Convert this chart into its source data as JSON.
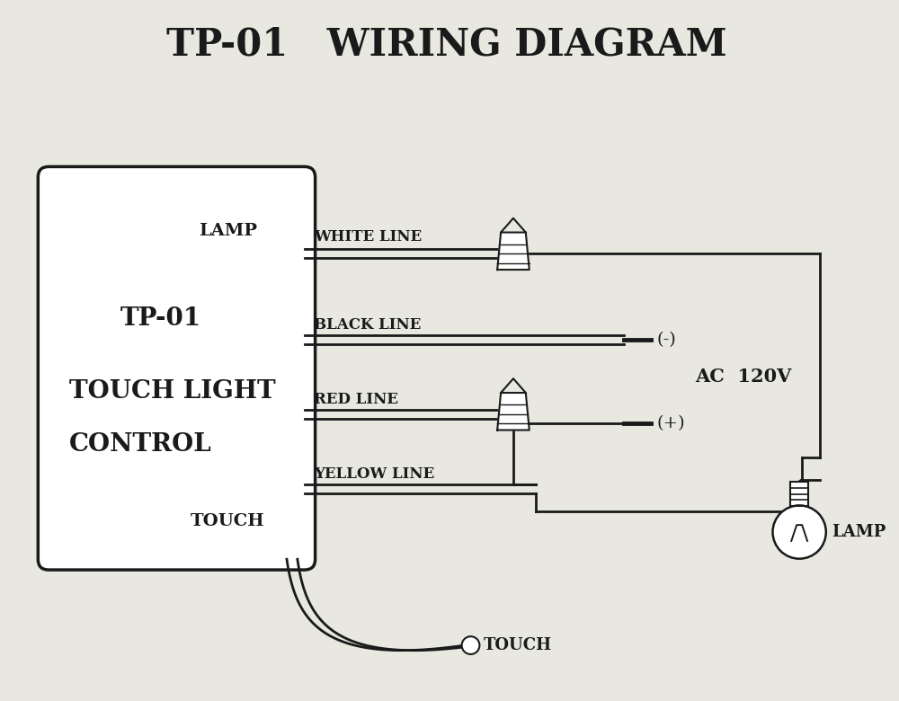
{
  "title": "TP-01   WIRING DIAGRAM",
  "bg_color": "#e8e8e0",
  "line_color": "#1a1a1a",
  "box_label_lamp": "LAMP",
  "box_label_touch": "TOUCH",
  "box_line1": "TP-01",
  "box_line2": "TOUCH LIGHT",
  "box_line3": "CONTROL",
  "wire_labels": [
    "WHITE LINE",
    "BLACK LINE",
    "RED LINE",
    "YELLOW LINE"
  ],
  "ac_label": "AC  120V",
  "neg_label": "(-)",
  "pos_label": "(+)",
  "lamp_label": "LAMP",
  "touch_label": "TOUCH"
}
